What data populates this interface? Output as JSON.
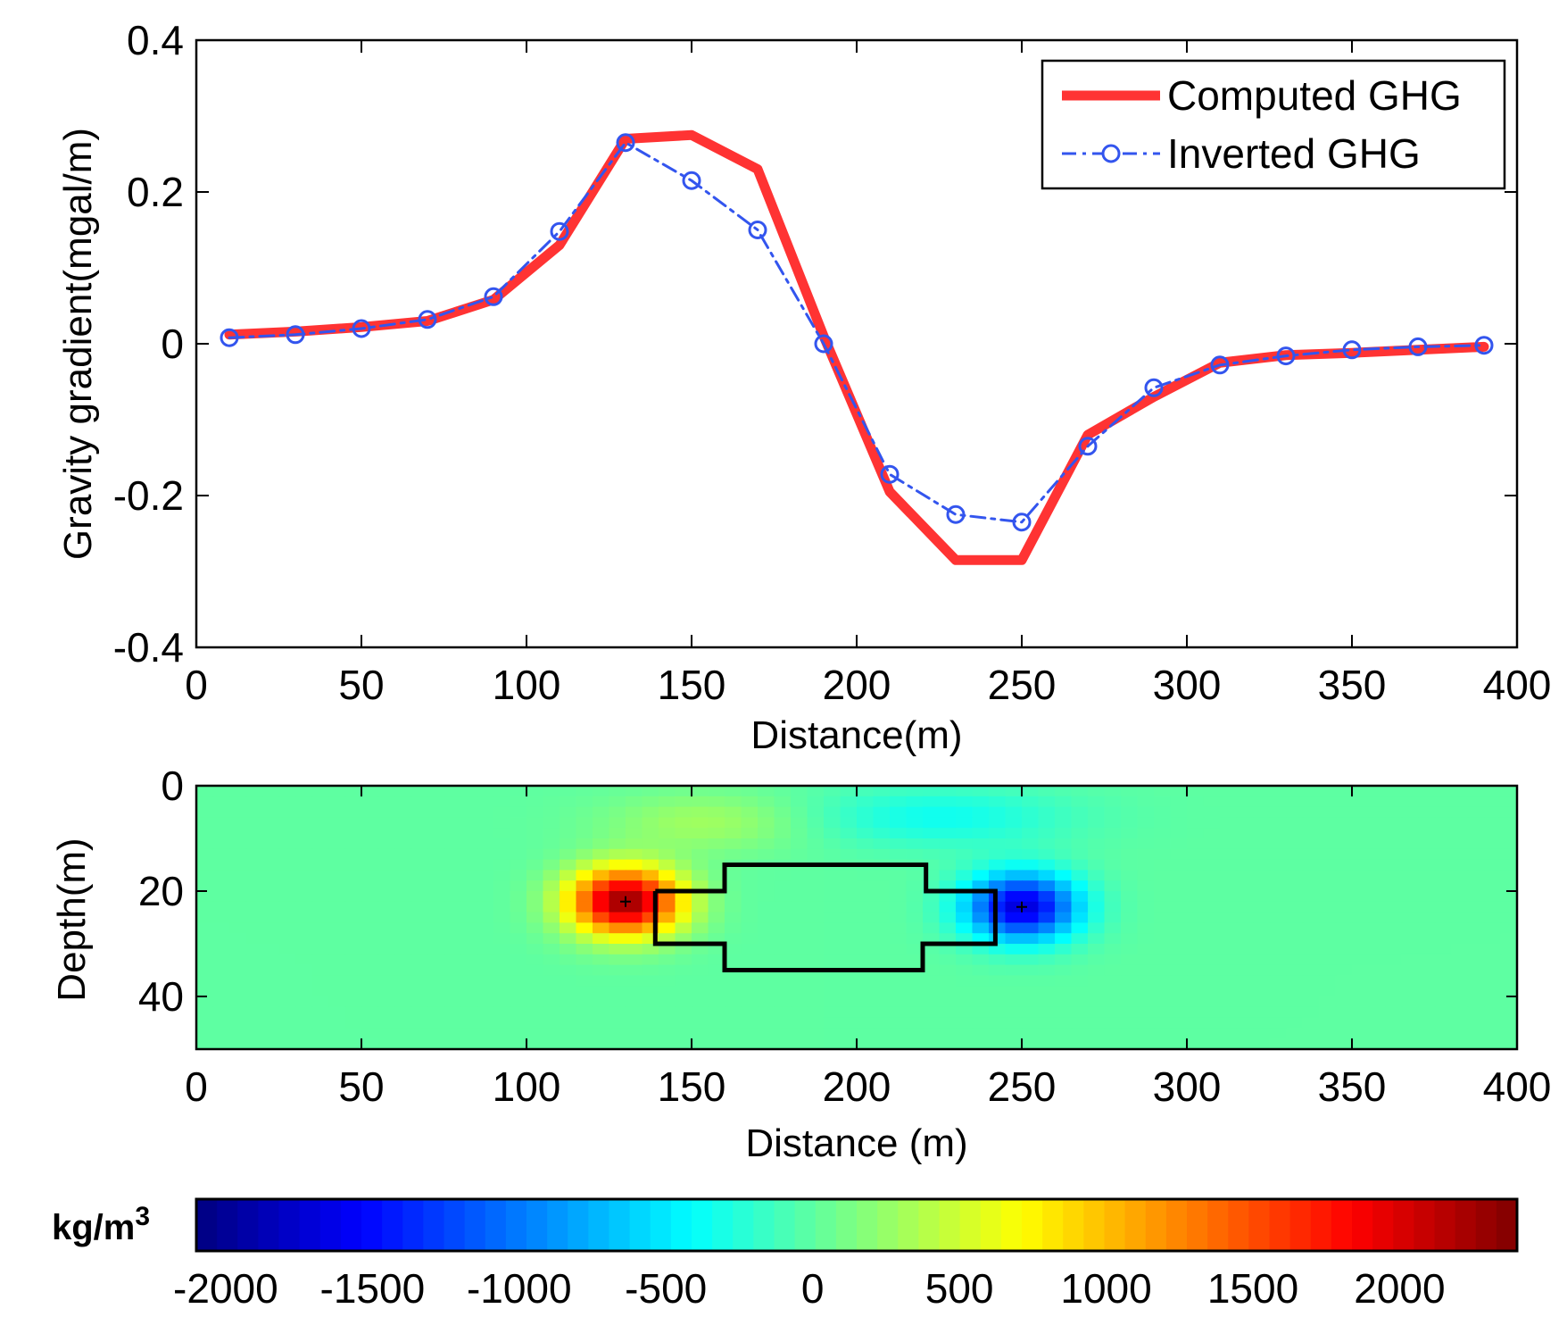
{
  "chart_data": [
    {
      "type": "line",
      "xlabel": "Distance(m)",
      "ylabel": "Gravity gradient(mgal/m)",
      "xlim": [
        0,
        400
      ],
      "ylim": [
        -0.4,
        0.4
      ],
      "xticks": [
        0,
        50,
        100,
        150,
        200,
        250,
        300,
        350,
        400
      ],
      "yticks": [
        0.4,
        0.2,
        0,
        -0.2,
        -0.4
      ],
      "xtick_labels": [
        "0",
        "50",
        "100",
        "150",
        "200",
        "250",
        "300",
        "350",
        "400"
      ],
      "ytick_labels": [
        "0.4",
        "0.2",
        "0",
        "-0.2",
        "-0.4"
      ],
      "legend_position": "top-right",
      "series": [
        {
          "name": "Computed GHG",
          "style": "solid",
          "marker": "none",
          "color": "#ff3333",
          "x": [
            10,
            30,
            50,
            70,
            90,
            110,
            130,
            150,
            170,
            190,
            210,
            230,
            250,
            270,
            290,
            310,
            330,
            350,
            370,
            390
          ],
          "y": [
            0.012,
            0.016,
            0.022,
            0.03,
            0.058,
            0.13,
            0.27,
            0.275,
            0.23,
            0.01,
            -0.195,
            -0.285,
            -0.285,
            -0.12,
            -0.07,
            -0.025,
            -0.015,
            -0.012,
            -0.008,
            -0.004
          ]
        },
        {
          "name": "Inverted GHG",
          "style": "dashdot",
          "marker": "circle",
          "color": "#3355ee",
          "x": [
            10,
            30,
            50,
            70,
            90,
            110,
            130,
            150,
            170,
            190,
            210,
            230,
            250,
            270,
            290,
            310,
            330,
            350,
            370,
            390
          ],
          "y": [
            0.008,
            0.012,
            0.02,
            0.032,
            0.062,
            0.148,
            0.265,
            0.215,
            0.15,
            0.0,
            -0.172,
            -0.225,
            -0.235,
            -0.135,
            -0.058,
            -0.028,
            -0.016,
            -0.008,
            -0.004,
            -0.002
          ]
        }
      ]
    },
    {
      "type": "heatmap",
      "xlabel": "Distance (m)",
      "ylabel": "Depth(m)",
      "xlim": [
        0,
        400
      ],
      "ylim": [
        50,
        0
      ],
      "xticks": [
        0,
        50,
        100,
        150,
        200,
        250,
        300,
        350,
        400
      ],
      "yticks": [
        0,
        20,
        40
      ],
      "xtick_labels": [
        "0",
        "50",
        "100",
        "150",
        "200",
        "250",
        "300",
        "350",
        "400"
      ],
      "ytick_labels": [
        "0",
        "20",
        "40"
      ],
      "anomalies": [
        {
          "label": "positive",
          "x": 130,
          "depth": 22,
          "value": 2300
        },
        {
          "label": "negative",
          "x": 250,
          "depth": 23,
          "value": -1700
        },
        {
          "label": "shallow-positive",
          "x": 155,
          "depth": 7,
          "value": 300
        },
        {
          "label": "shallow-negative",
          "x": 225,
          "depth": 6,
          "value": -350
        }
      ],
      "body_outline": {
        "x": [
          139,
          160,
          160,
          221,
          221,
          242,
          242,
          220,
          220,
          160,
          160,
          139,
          139
        ],
        "depth": [
          20,
          20,
          15,
          15,
          20,
          20,
          30,
          30,
          35,
          35,
          30,
          30,
          20
        ]
      },
      "colorbar": {
        "unit": "kg/m",
        "unit_superscript": "3",
        "range": [
          -2100,
          2400
        ],
        "ticks": [
          -2000,
          -1500,
          -1000,
          -500,
          0,
          500,
          1000,
          1500,
          2000
        ],
        "tick_labels": [
          "-2000",
          "-1500",
          "-1000",
          "-500",
          "0",
          "500",
          "1000",
          "1500",
          "2000"
        ],
        "colormap": "jet"
      }
    }
  ]
}
